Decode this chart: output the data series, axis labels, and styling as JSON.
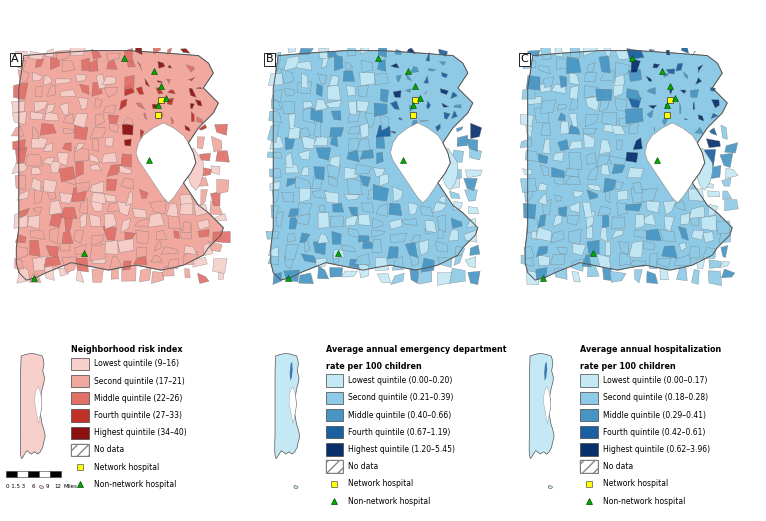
{
  "panel_labels": [
    "A",
    "B",
    "C"
  ],
  "legend_A_title": "Neighborhood risk index",
  "legend_A_items": [
    {
      "label": "Lowest quintile (9–16)",
      "color": "#f7d0cb"
    },
    {
      "label": "Second quintile (17–21)",
      "color": "#f0a89f"
    },
    {
      "label": "Middle quintile (22–26)",
      "color": "#e07068"
    },
    {
      "label": "Fourth quintile (27–33)",
      "color": "#c03028"
    },
    {
      "label": "Highest quintile (34–40)",
      "color": "#8b1010"
    }
  ],
  "legend_B_title": "Average annual emergency department\nrate per 100 children",
  "legend_B_items": [
    {
      "label": "Lowest quintile (0.00–0.20)",
      "color": "#c5e8f5"
    },
    {
      "label": "Second quintile (0.21–0.39)",
      "color": "#8ecae6"
    },
    {
      "label": "Middle quintile (0.40–0.66)",
      "color": "#4895c4"
    },
    {
      "label": "Fourth quintile (0.67–1.19)",
      "color": "#1a5fa0"
    },
    {
      "label": "Highest quintile (1.20–5.45)",
      "color": "#08306b"
    }
  ],
  "legend_C_title": "Average annual hospitalization\nrate per 100 children",
  "legend_C_items": [
    {
      "label": "Lowest quintile (0.00–0.17)",
      "color": "#c5e8f5"
    },
    {
      "label": "Second quintile (0.18–0.28)",
      "color": "#8ecae6"
    },
    {
      "label": "Middle quintile (0.29–0.41)",
      "color": "#4895c4"
    },
    {
      "label": "Fourth quintile (0.42–0.61)",
      "color": "#1a5fa0"
    },
    {
      "label": "Highest quintile (0.62–3.96)",
      "color": "#08306b"
    }
  ],
  "no_data_label": "No data",
  "network_hospital_label": "Network hospital",
  "non_network_hospital_label": "Non-network hospital",
  "network_hospital_color": "#ffff00",
  "non_network_hospital_color": "#00aa00",
  "bg_color": "#ffffff",
  "fig_width": 7.66,
  "fig_height": 5.21,
  "dpi": 100
}
